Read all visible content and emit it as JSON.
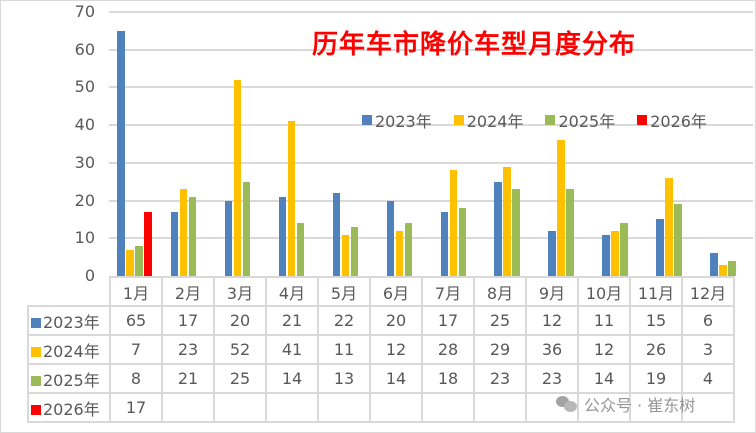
{
  "chart_data": {
    "type": "bar",
    "title": "历年车市降价车型月度分布",
    "xlabel": "",
    "ylabel": "",
    "ylim": [
      0,
      70
    ],
    "yticks": [
      0,
      10,
      20,
      30,
      40,
      50,
      60,
      70
    ],
    "grid": true,
    "legend_position": "top-right (inside plot)",
    "categories": [
      "1月",
      "2月",
      "3月",
      "4月",
      "5月",
      "6月",
      "7月",
      "8月",
      "9月",
      "10月",
      "11月",
      "12月"
    ],
    "series": [
      {
        "name": "2023年",
        "color": "#4f81bd",
        "values": [
          65,
          17,
          20,
          21,
          22,
          20,
          17,
          25,
          12,
          11,
          15,
          6
        ]
      },
      {
        "name": "2024年",
        "color": "#ffc000",
        "values": [
          7,
          23,
          52,
          41,
          11,
          12,
          28,
          29,
          36,
          12,
          26,
          3
        ]
      },
      {
        "name": "2025年",
        "color": "#9bbb59",
        "values": [
          8,
          21,
          25,
          14,
          13,
          14,
          18,
          23,
          23,
          14,
          19,
          4
        ]
      },
      {
        "name": "2026年",
        "color": "#ff0000",
        "values": [
          17,
          null,
          null,
          null,
          null,
          null,
          null,
          null,
          null,
          null,
          null,
          null
        ]
      }
    ],
    "data_table": true
  },
  "title": "历年车市降价车型月度分布",
  "legend": [
    {
      "label": "2023年",
      "color": "#4f81bd"
    },
    {
      "label": "2024年",
      "color": "#ffc000"
    },
    {
      "label": "2025年",
      "color": "#9bbb59"
    },
    {
      "label": "2026年",
      "color": "#ff0000"
    }
  ],
  "yaxis": {
    "ticks": [
      "70",
      "60",
      "50",
      "40",
      "30",
      "20",
      "10",
      "0"
    ]
  },
  "table": {
    "headers": [
      "1月",
      "2月",
      "3月",
      "4月",
      "5月",
      "6月",
      "7月",
      "8月",
      "9月",
      "10月",
      "11月",
      "12月"
    ],
    "rows": [
      {
        "label": "2023年",
        "cells": [
          "65",
          "17",
          "20",
          "21",
          "22",
          "20",
          "17",
          "25",
          "12",
          "11",
          "15",
          "6"
        ]
      },
      {
        "label": "2024年",
        "cells": [
          "7",
          "23",
          "52",
          "41",
          "11",
          "12",
          "28",
          "29",
          "36",
          "12",
          "26",
          "3"
        ]
      },
      {
        "label": "2025年",
        "cells": [
          "8",
          "21",
          "25",
          "14",
          "13",
          "14",
          "18",
          "23",
          "23",
          "14",
          "19",
          "4"
        ]
      },
      {
        "label": "2026年",
        "cells": [
          "17",
          "",
          "",
          "",
          "",
          "",
          "",
          "",
          "",
          "",
          "",
          ""
        ]
      }
    ]
  },
  "watermark": {
    "text": "公众号 · 崔东树"
  }
}
